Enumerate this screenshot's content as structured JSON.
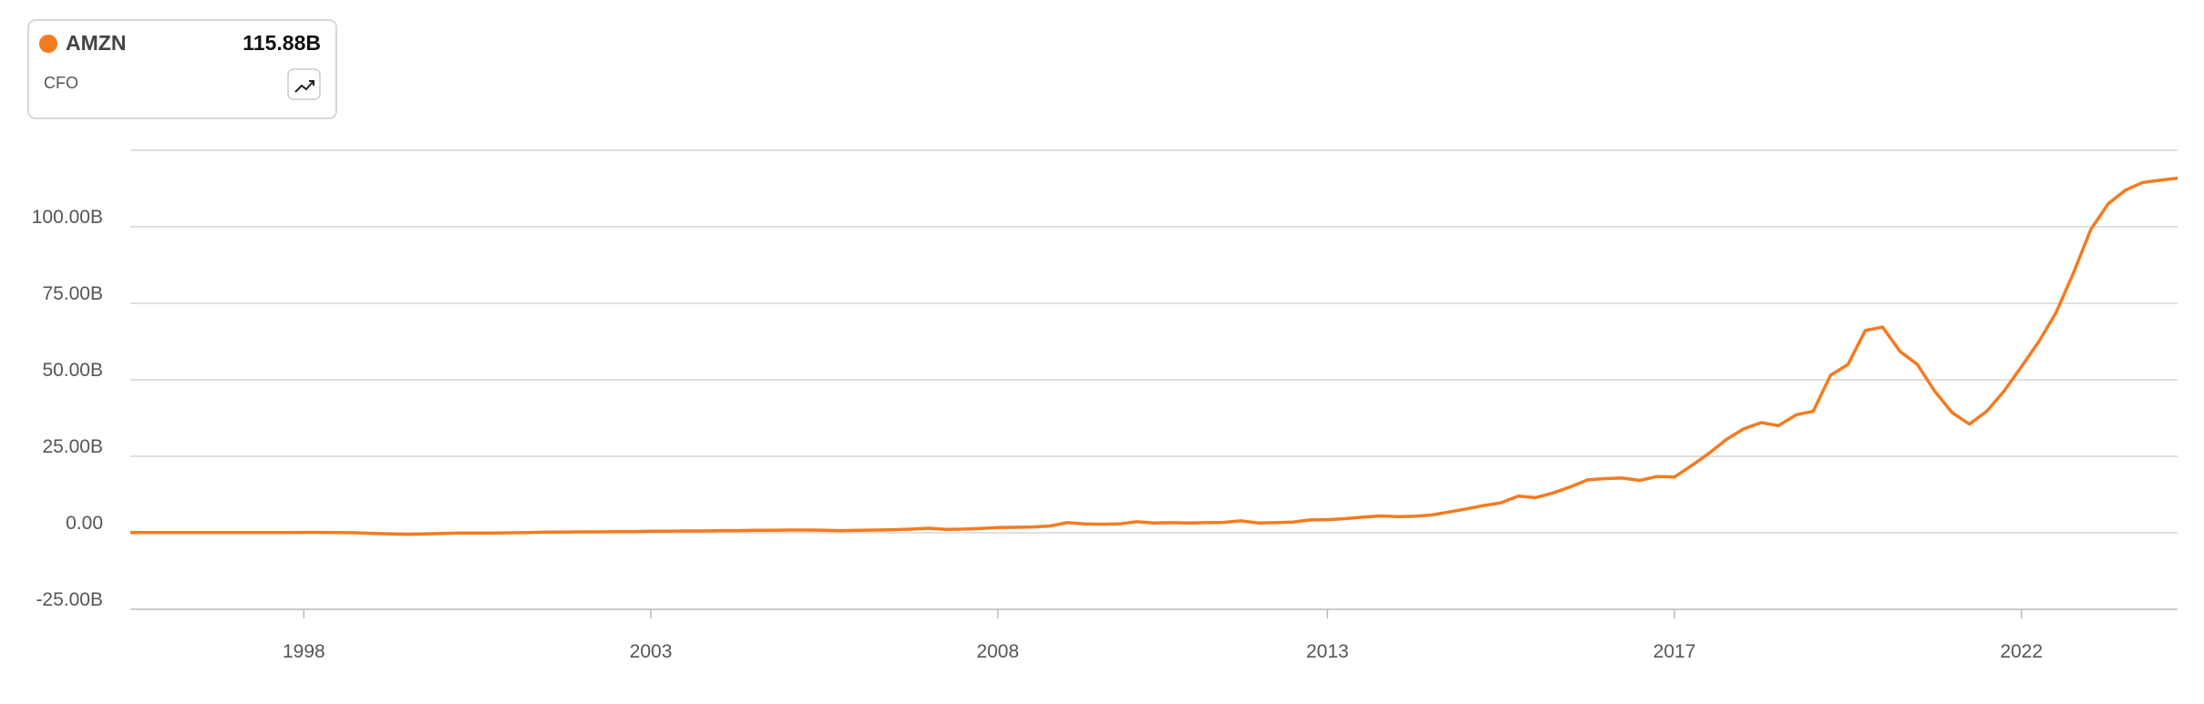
{
  "legend_card": {
    "ticker": "AMZN",
    "value": "115.88B",
    "metric": "CFO"
  },
  "chart_data": {
    "type": "line",
    "categories": [
      null,
      null,
      null,
      null,
      null,
      null,
      null,
      null,
      null,
      null,
      "1998",
      null,
      null,
      null,
      null,
      null,
      null,
      null,
      null,
      null,
      null,
      null,
      null,
      null,
      null,
      null,
      null,
      null,
      null,
      null,
      "2003",
      null,
      null,
      null,
      null,
      null,
      null,
      null,
      null,
      null,
      null,
      null,
      null,
      null,
      null,
      null,
      null,
      null,
      null,
      null,
      "2008",
      null,
      null,
      null,
      null,
      null,
      null,
      null,
      null,
      null,
      null,
      null,
      null,
      null,
      null,
      null,
      null,
      null,
      null,
      "2013",
      null,
      null,
      null,
      null,
      null,
      null,
      null,
      null,
      null,
      null,
      null,
      null,
      null,
      null,
      null,
      null,
      null,
      null,
      null,
      "2017",
      null,
      null,
      null,
      null,
      null,
      null,
      null,
      null,
      null,
      null,
      null,
      null,
      null,
      null,
      null,
      null,
      null,
      null,
      null,
      "2022",
      null,
      null,
      null,
      null,
      null,
      null,
      null,
      null,
      null
    ],
    "series": [
      {
        "name": "AMZN",
        "color": "#f47b20",
        "values": [
          0.05,
          0.05,
          0.05,
          0.05,
          0.06,
          0.06,
          0.07,
          0.08,
          0.1,
          0.1,
          0.12,
          0.12,
          0.1,
          0,
          -0.2,
          -0.4,
          -0.5,
          -0.4,
          -0.2,
          -0.1,
          -0.1,
          -0.1,
          0,
          0.1,
          0.2,
          0.2,
          0.3,
          0.3,
          0.4,
          0.4,
          0.5,
          0.5,
          0.6,
          0.6,
          0.7,
          0.7,
          0.8,
          0.8,
          0.9,
          0.9,
          0.8,
          0.7,
          0.8,
          0.9,
          1.0,
          1.2,
          1.5,
          1.1,
          1.2,
          1.4,
          1.7,
          1.8,
          1.9,
          2.2,
          3.3,
          2.9,
          2.8,
          2.9,
          3.6,
          3.2,
          3.3,
          3.2,
          3.3,
          3.4,
          3.9,
          3.2,
          3.3,
          3.5,
          4.2,
          4.3,
          4.6,
          5.1,
          5.5,
          5.3,
          5.4,
          5.8,
          6.8,
          7.8,
          8.9,
          9.8,
          12.0,
          11.5,
          13.0,
          15.0,
          17.3,
          17.7,
          17.9,
          17.1,
          18.4,
          18.2,
          22.0,
          26.0,
          30.5,
          34.0,
          36.0,
          35.0,
          38.5,
          39.7,
          51.5,
          55.0,
          66.1,
          67.2,
          59.3,
          55.0,
          46.3,
          39.3,
          35.5,
          39.7,
          46.3,
          54.3,
          62.4,
          72.0,
          84.9,
          99.1,
          107.5,
          112.0,
          114.5,
          115.2,
          115.88
        ]
      }
    ],
    "ylim": [
      -25,
      125
    ],
    "yticks": [
      {
        "value": -25,
        "label": "-25.00B"
      },
      {
        "value": 0,
        "label": "0.00"
      },
      {
        "value": 25,
        "label": "25.00B"
      },
      {
        "value": 50,
        "label": "50.00B"
      },
      {
        "value": 75,
        "label": "75.00B"
      },
      {
        "value": 100,
        "label": "100.00B"
      }
    ],
    "grid": true
  }
}
